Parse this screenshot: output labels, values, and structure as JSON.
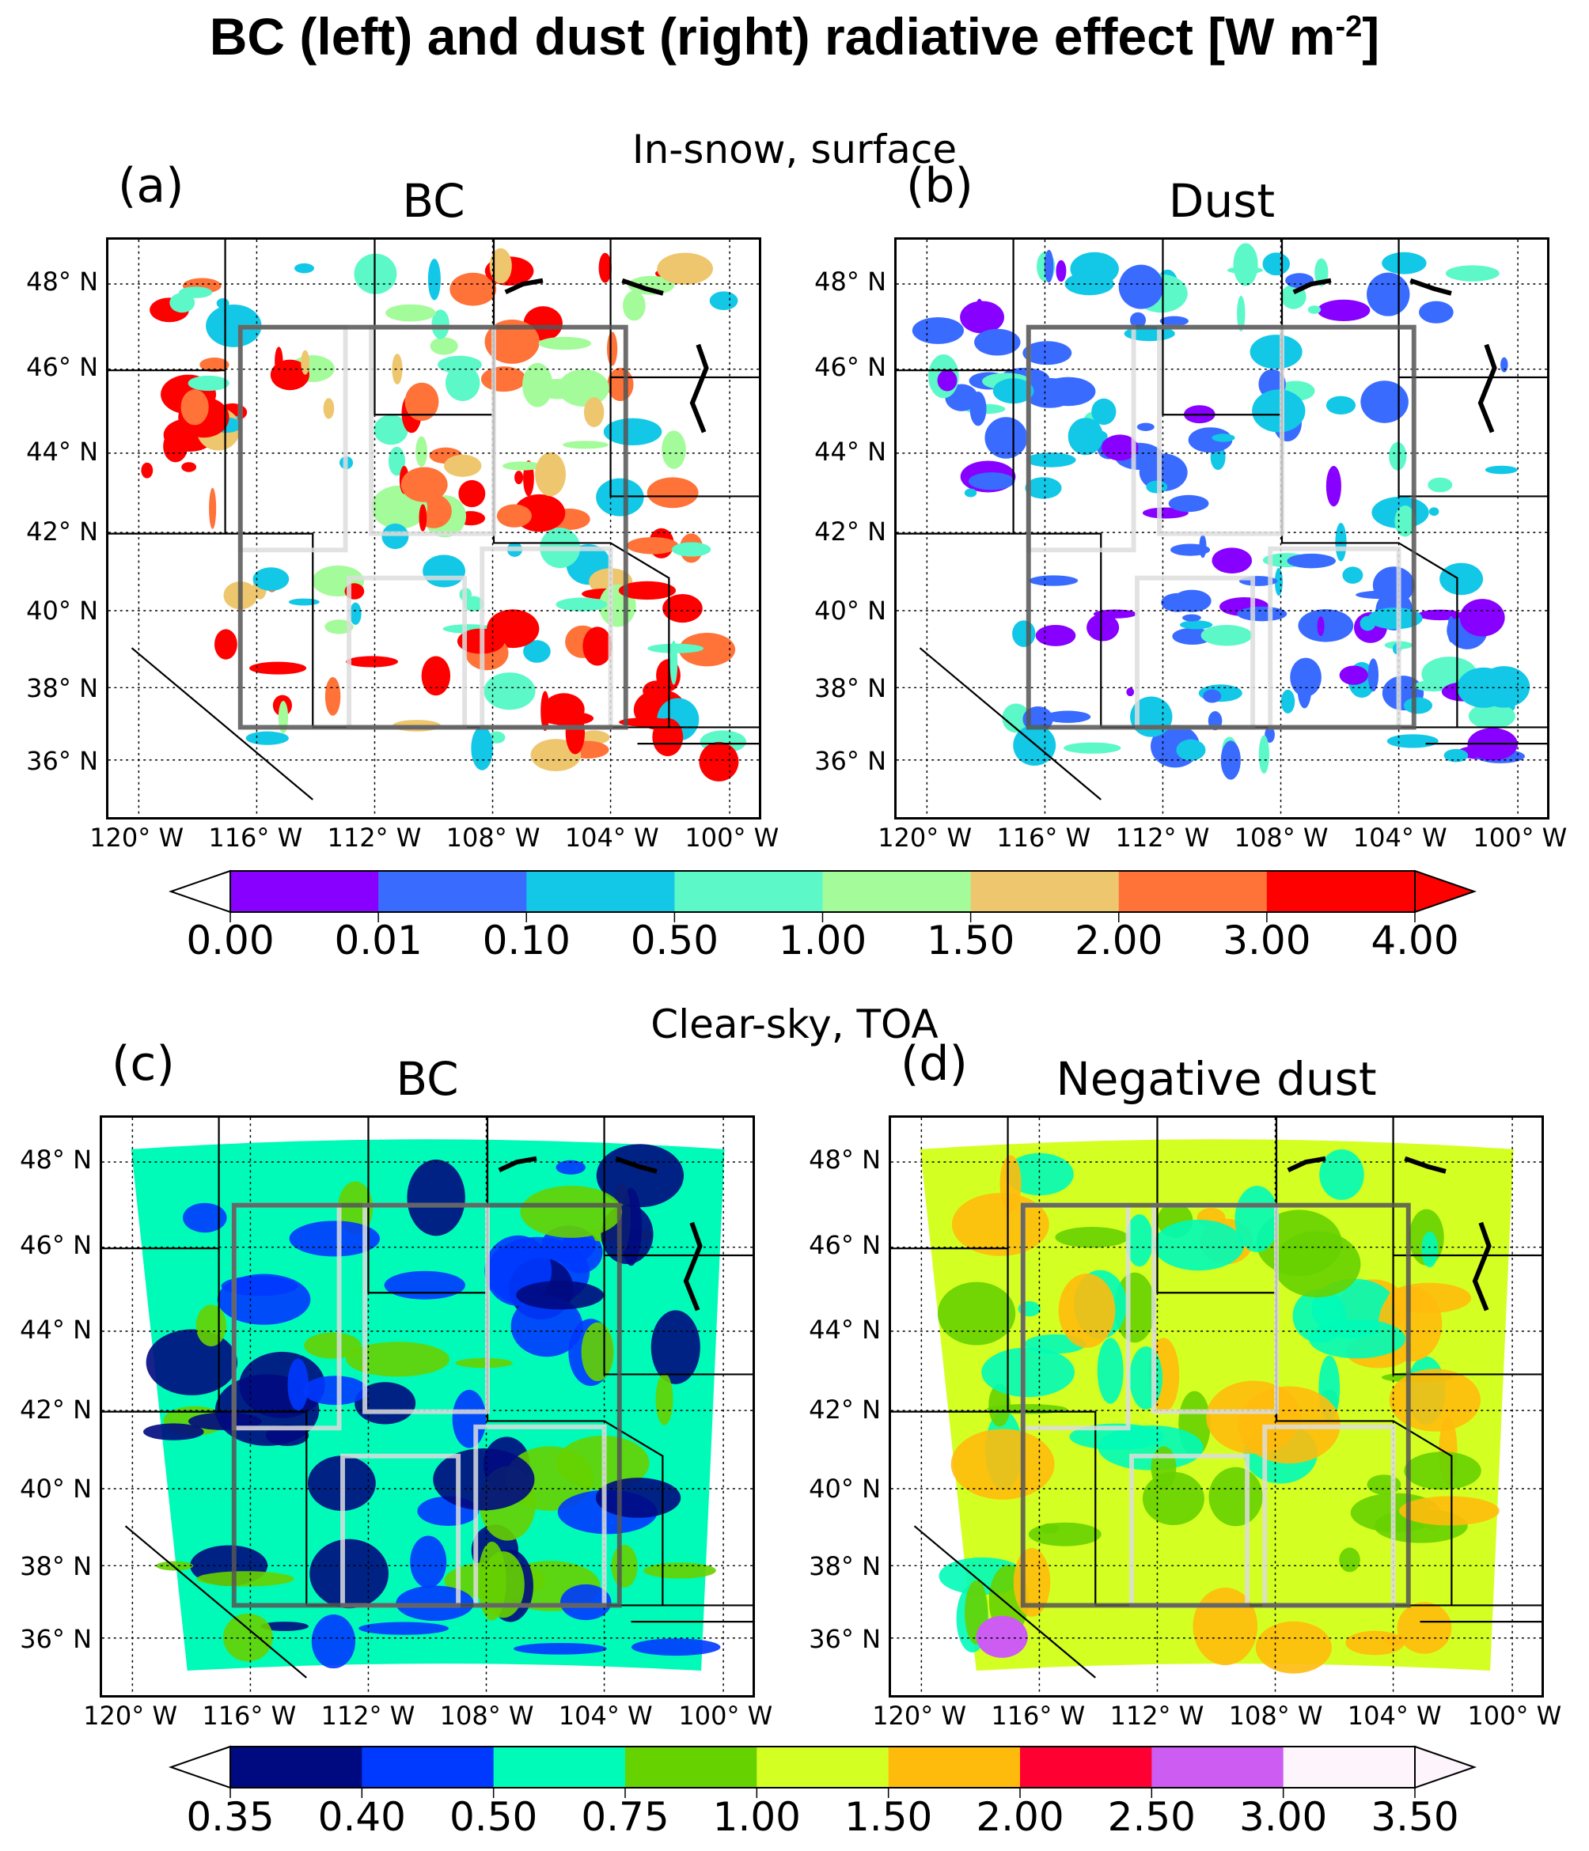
{
  "title": {
    "text": "BC (left) and dust (right) radiative effect [W m",
    "sup": "-2",
    "end": "]"
  },
  "sections": [
    "In-snow, surface",
    "Clear-sky, TOA"
  ],
  "panels": [
    {
      "label": "(a)",
      "title": "BC",
      "kind": "snow",
      "variable": "BC"
    },
    {
      "label": "(b)",
      "title": "Dust",
      "kind": "snow",
      "variable": "Dust"
    },
    {
      "label": "(c)",
      "title": "BC",
      "kind": "toa",
      "variable": "BC"
    },
    {
      "label": "(d)",
      "title": "Negative dust",
      "kind": "toa",
      "variable": "Dust"
    }
  ],
  "axes": {
    "lat_ticks": [
      "48° N",
      "46° N",
      "44° N",
      "42° N",
      "40° N",
      "38° N",
      "36° N"
    ],
    "lon_ticks": [
      "120° W",
      "116° W",
      "112° W",
      "108° W",
      "104° W",
      "100° W"
    ]
  },
  "colorbars": [
    {
      "levels": [
        "0.00",
        "0.01",
        "0.10",
        "0.50",
        "1.00",
        "1.50",
        "2.00",
        "3.00",
        "4.00"
      ],
      "colors": [
        "#8800ff",
        "#3a6bff",
        "#12c8e6",
        "#5cf8c8",
        "#a4fb9a",
        "#eec66e",
        "#ff7238",
        "#ff0000"
      ],
      "under_color": "#ffffff",
      "over_color": "#ff0000"
    },
    {
      "levels": [
        "0.35",
        "0.40",
        "0.50",
        "0.75",
        "1.00",
        "1.50",
        "2.00",
        "2.50",
        "3.00",
        "3.50"
      ],
      "colors": [
        "#000a80",
        "#0039ff",
        "#00fbb8",
        "#66d200",
        "#d4ff22",
        "#ffbb0c",
        "#ff0033",
        "#cc5cf2",
        "#fdf5fb"
      ],
      "under_color": "#ffffff",
      "over_color": "#fdf5fb"
    }
  ]
}
